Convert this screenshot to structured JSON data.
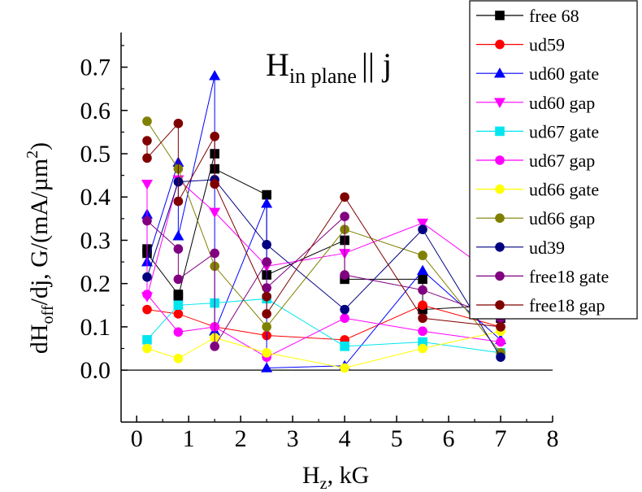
{
  "chart_data": {
    "type": "scatter",
    "title": "H",
    "title_sub": "in plane",
    "title_rel": "|| j",
    "xlabel": {
      "main": "H",
      "sub": "z",
      "rest": ", kG"
    },
    "ylabel": {
      "a": "dH",
      "sub": "off",
      "b": "/dj, G/(mA/µm",
      "sup": "2",
      "c": ")"
    },
    "xlim": [
      -0.3,
      8
    ],
    "ylim": [
      -0.12,
      0.78
    ],
    "x_ticks": [
      "0",
      "1",
      "2",
      "3",
      "4",
      "5",
      "6",
      "7",
      "8"
    ],
    "y_ticks": [
      "0.0",
      "0.1",
      "0.2",
      "0.3",
      "0.4",
      "0.5",
      "0.6",
      "0.7"
    ],
    "x_tick_values": [
      0,
      1,
      2,
      3,
      4,
      5,
      6,
      7,
      8
    ],
    "y_tick_values": [
      0.0,
      0.1,
      0.2,
      0.3,
      0.4,
      0.5,
      0.6,
      0.7
    ],
    "zero_line": true,
    "legend_position": "top-right",
    "series": [
      {
        "name": "free 68",
        "color": "#000000",
        "marker": "square",
        "x": [
          0.2,
          0.2,
          0.8,
          0.8,
          1.5,
          1.5,
          2.5,
          2.5,
          4,
          4,
          5.5,
          5.5,
          7,
          7
        ],
        "y": [
          0.28,
          0.27,
          0.175,
          0.17,
          0.5,
          0.465,
          0.405,
          0.22,
          0.3,
          0.21,
          0.21,
          0.14,
          0.15,
          0.12
        ]
      },
      {
        "name": "ud59",
        "color": "#ff0000",
        "marker": "circle",
        "x": [
          0.2,
          0.8,
          1.5,
          2.5,
          4,
          5.5,
          7
        ],
        "y": [
          0.14,
          0.13,
          0.1,
          0.08,
          0.07,
          0.15,
          0.1
        ]
      },
      {
        "name": "ud60 gate",
        "color": "#0000ff",
        "marker": "triangle-up",
        "x": [
          0.2,
          0.2,
          0.8,
          0.8,
          1.5,
          1.5,
          2.5,
          2.5,
          4,
          5.5,
          7
        ],
        "y": [
          0.36,
          0.25,
          0.48,
          0.31,
          0.68,
          0.09,
          0.385,
          0.005,
          0.01,
          0.23,
          0.07
        ]
      },
      {
        "name": "ud60 gap",
        "color": "#ff00ff",
        "marker": "triangle-down",
        "x": [
          0.2,
          0.2,
          0.8,
          1.5,
          2.5,
          4,
          5.5,
          7
        ],
        "y": [
          0.43,
          0.17,
          0.44,
          0.365,
          0.24,
          0.27,
          0.34,
          0.21
        ]
      },
      {
        "name": "ud67 gate",
        "color": "#00e5ee",
        "marker": "square",
        "x": [
          0.2,
          0.8,
          1.5,
          2.5,
          4,
          5.5,
          7
        ],
        "y": [
          0.07,
          0.15,
          0.155,
          0.165,
          0.055,
          0.065,
          0.04
        ]
      },
      {
        "name": "ud67 gap",
        "color": "#ff00ff",
        "marker": "circle",
        "x": [
          0.2,
          0.8,
          1.5,
          2.5,
          4,
          5.5,
          7
        ],
        "y": [
          0.175,
          0.088,
          0.1,
          0.03,
          0.12,
          0.09,
          0.065
        ]
      },
      {
        "name": "ud66 gate",
        "color": "#ffff00",
        "marker": "circle",
        "x": [
          0.2,
          0.8,
          1.5,
          2.5,
          4,
          5.5,
          7
        ],
        "y": [
          0.05,
          0.027,
          0.075,
          0.04,
          0.005,
          0.05,
          0.09
        ]
      },
      {
        "name": "ud66 gap",
        "color": "#808000",
        "marker": "circle",
        "x": [
          0.2,
          0.8,
          1.5,
          2.5,
          4,
          5.5,
          7
        ],
        "y": [
          0.575,
          0.465,
          0.24,
          0.1,
          0.325,
          0.265,
          0.04
        ]
      },
      {
        "name": "ud39",
        "color": "#000080",
        "marker": "circle",
        "x": [
          0.2,
          0.8,
          1.5,
          2.5,
          4,
          5.5,
          7
        ],
        "y": [
          0.215,
          0.435,
          0.44,
          0.29,
          0.14,
          0.325,
          0.03
        ]
      },
      {
        "name": "free18 gate",
        "color": "#800080",
        "marker": "circle",
        "x": [
          0.2,
          0.8,
          0.8,
          1.5,
          1.5,
          2.5,
          2.5,
          4,
          4,
          5.5,
          7
        ],
        "y": [
          0.345,
          0.28,
          0.21,
          0.27,
          0.055,
          0.25,
          0.19,
          0.355,
          0.22,
          0.185,
          0.12
        ]
      },
      {
        "name": "free18 gap",
        "color": "#800000",
        "marker": "circle",
        "x": [
          0.2,
          0.2,
          0.8,
          0.8,
          1.5,
          1.5,
          2.5,
          2.5,
          4,
          5.5,
          7
        ],
        "y": [
          0.53,
          0.49,
          0.57,
          0.39,
          0.54,
          0.43,
          0.17,
          0.13,
          0.4,
          0.12,
          0.1
        ]
      }
    ]
  }
}
